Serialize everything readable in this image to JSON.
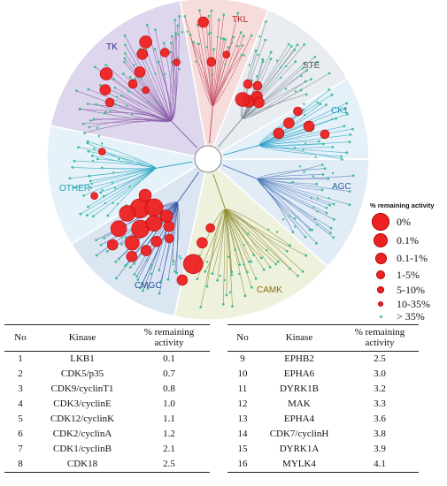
{
  "groups": [
    {
      "id": "tk",
      "label": "TK",
      "color": "#2f2a8a",
      "fill": "#ddd6ec"
    },
    {
      "id": "tkl",
      "label": "TKL",
      "color": "#b02828",
      "fill": "#f7dcdc"
    },
    {
      "id": "ste",
      "label": "STE",
      "color": "#555555",
      "fill": "#e9ecf0"
    },
    {
      "id": "ck1",
      "label": "CK1",
      "color": "#1a8fb8",
      "fill": "#e5f1f8"
    },
    {
      "id": "agc",
      "label": "AGC",
      "color": "#2a5f9a",
      "fill": "#e2ecf6"
    },
    {
      "id": "camk",
      "label": "CAMK",
      "color": "#8a6d12",
      "fill": "#eef1dc"
    },
    {
      "id": "cmgc",
      "label": "CMGC",
      "color": "#2a4a9a",
      "fill": "#dce6f3"
    },
    {
      "id": "other",
      "label": "OTHER",
      "color": "#1a9fb3",
      "fill": "#e6f2f9"
    }
  ],
  "legend": {
    "title": "% remaining activity",
    "items": [
      {
        "label": "0%",
        "size": 20
      },
      {
        "label": "0.1%",
        "size": 16
      },
      {
        "label": "0.1-1%",
        "size": 13
      },
      {
        "label": "1-5%",
        "size": 10
      },
      {
        "label": "5-10%",
        "size": 8
      },
      {
        "label": "10-35%",
        "size": 6
      },
      {
        "label": "> 35%",
        "size": 3
      }
    ]
  },
  "colors": {
    "hit": "#ee2222",
    "hit_edge": "#b10000",
    "nonhit": "#3fbf8f"
  },
  "table": {
    "headers": {
      "no": "No",
      "kinase": "Kinase",
      "activity_line1": "% remaining",
      "activity_line2": "activity"
    },
    "rows": [
      {
        "no": "1",
        "kinase": "LKB1",
        "activity": "0.1"
      },
      {
        "no": "2",
        "kinase": "CDK5/p35",
        "activity": "0.7"
      },
      {
        "no": "3",
        "kinase": "CDK9/cyclinT1",
        "activity": "0.8"
      },
      {
        "no": "4",
        "kinase": "CDK3/cyclinE",
        "activity": "1.0"
      },
      {
        "no": "5",
        "kinase": "CDK12/cyclinK",
        "activity": "1.1"
      },
      {
        "no": "6",
        "kinase": "CDK2/cyclinA",
        "activity": "1.2"
      },
      {
        "no": "7",
        "kinase": "CDK1/cyclinB",
        "activity": "2.1"
      },
      {
        "no": "8",
        "kinase": "CDK18",
        "activity": "2.5"
      },
      {
        "no": "9",
        "kinase": "EPHB2",
        "activity": "2.5"
      },
      {
        "no": "10",
        "kinase": "EPHA6",
        "activity": "3.0"
      },
      {
        "no": "11",
        "kinase": "DYRK1B",
        "activity": "3.2"
      },
      {
        "no": "12",
        "kinase": "MAK",
        "activity": "3.3"
      },
      {
        "no": "13",
        "kinase": "EPHA4",
        "activity": "3.6"
      },
      {
        "no": "14",
        "kinase": "CDK7/cyclinH",
        "activity": "3.8"
      },
      {
        "no": "15",
        "kinase": "DYRK1A",
        "activity": "3.9"
      },
      {
        "no": "16",
        "kinase": "MYLK4",
        "activity": "4.1"
      }
    ]
  }
}
